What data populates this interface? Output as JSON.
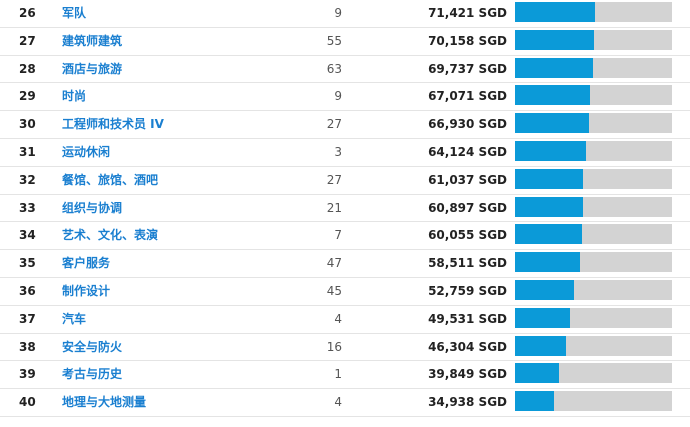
{
  "currency": "SGD",
  "colors": {
    "link": "#1a7fd0",
    "bar_fill": "#0b9ad8",
    "bar_track": "#d3d3d3"
  },
  "rows": [
    {
      "rank": "26",
      "name": "军队",
      "count": "9",
      "salary": "71,421 SGD",
      "level": 0.51
    },
    {
      "rank": "27",
      "name": "建筑师建筑",
      "count": "55",
      "salary": "70,158 SGD",
      "level": 0.5
    },
    {
      "rank": "28",
      "name": "酒店与旅游",
      "count": "63",
      "salary": "69,737 SGD",
      "level": 0.495
    },
    {
      "rank": "29",
      "name": "时尚",
      "count": "9",
      "salary": "67,071 SGD",
      "level": 0.475
    },
    {
      "rank": "30",
      "name": "工程师和技术员 IV",
      "count": "27",
      "salary": "66,930 SGD",
      "level": 0.474
    },
    {
      "rank": "31",
      "name": "运动休闲",
      "count": "3",
      "salary": "64,124 SGD",
      "level": 0.455
    },
    {
      "rank": "32",
      "name": "餐馆、旅馆、酒吧",
      "count": "27",
      "salary": "61,037 SGD",
      "level": 0.433
    },
    {
      "rank": "33",
      "name": "组织与协调",
      "count": "21",
      "salary": "60,897 SGD",
      "level": 0.432
    },
    {
      "rank": "34",
      "name": "艺术、文化、表演",
      "count": "7",
      "salary": "60,055 SGD",
      "level": 0.426
    },
    {
      "rank": "35",
      "name": "客户服务",
      "count": "47",
      "salary": "58,511 SGD",
      "level": 0.415
    },
    {
      "rank": "36",
      "name": "制作设计",
      "count": "45",
      "salary": "52,759 SGD",
      "level": 0.374
    },
    {
      "rank": "37",
      "name": "汽车",
      "count": "4",
      "salary": "49,531 SGD",
      "level": 0.351
    },
    {
      "rank": "38",
      "name": "安全与防火",
      "count": "16",
      "salary": "46,304 SGD",
      "level": 0.328
    },
    {
      "rank": "39",
      "name": "考古与历史",
      "count": "1",
      "salary": "39,849 SGD",
      "level": 0.283
    },
    {
      "rank": "40",
      "name": "地理与大地测量",
      "count": "4",
      "salary": "34,938 SGD",
      "level": 0.248
    }
  ]
}
